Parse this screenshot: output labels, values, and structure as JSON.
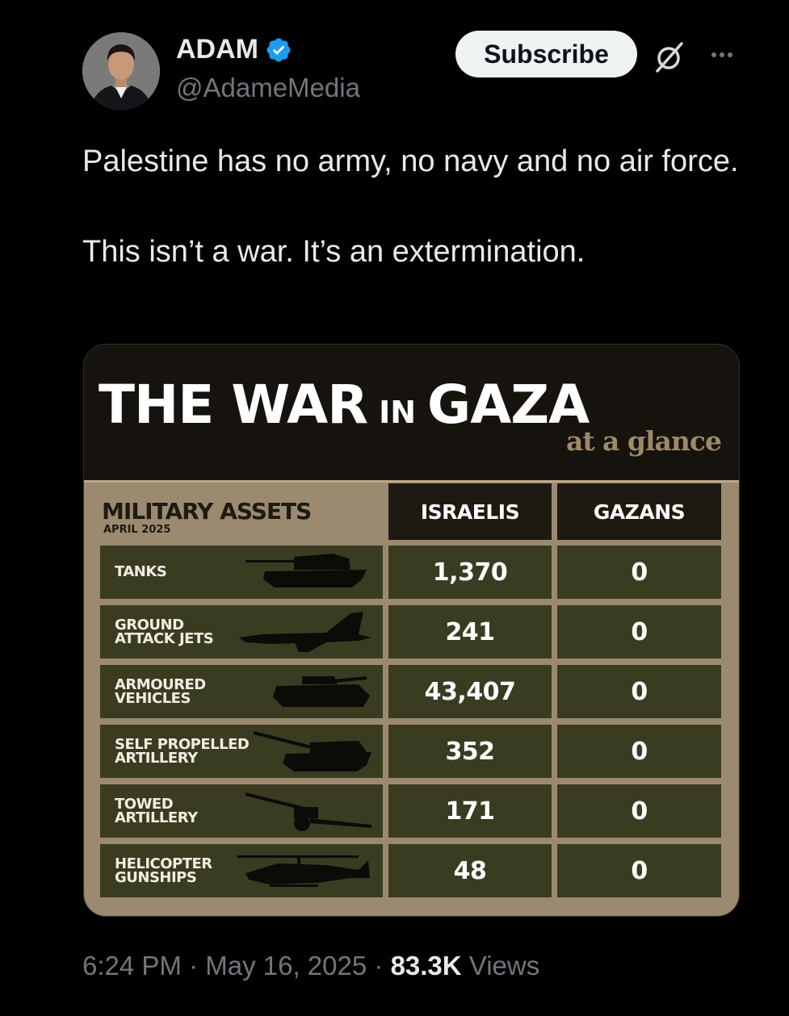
{
  "author": {
    "name": "ADAM",
    "handle": "@AdameMedia",
    "verified": true,
    "badge_color": "#1d9bf0"
  },
  "actions": {
    "subscribe_label": "Subscribe",
    "grok_icon": "grok-icon",
    "more_icon": "more-icon"
  },
  "tweet": {
    "paragraphs": [
      "Palestine has no army, no navy and no air force.",
      "This isn’t a war. It’s an extermination."
    ]
  },
  "infographic": {
    "title_part1": "THE WAR",
    "title_in": "IN",
    "title_part2": "GAZA",
    "subtitle": "at a glance",
    "section_title": "MILITARY ASSETS",
    "section_date": "APRIL 2025",
    "columns": [
      "ISRAELIS",
      "GAZANS"
    ],
    "rows": [
      {
        "label": "TANKS",
        "icon": "tank-icon",
        "israelis": "1,370",
        "gazans": "0"
      },
      {
        "label": "GROUND\nATTACK JETS",
        "icon": "jet-icon",
        "israelis": "241",
        "gazans": "0"
      },
      {
        "label": "ARMOURED\nVEHICLES",
        "icon": "armoured-vehicle-icon",
        "israelis": "43,407",
        "gazans": "0"
      },
      {
        "label": "SELF PROPELLED\nARTILLERY",
        "icon": "self-propelled-artillery-icon",
        "israelis": "352",
        "gazans": "0"
      },
      {
        "label": "TOWED\nARTILLERY",
        "icon": "towed-artillery-icon",
        "israelis": "171",
        "gazans": "0"
      },
      {
        "label": "HELICOPTER\nGUNSHIPS",
        "icon": "helicopter-icon",
        "israelis": "48",
        "gazans": "0"
      }
    ]
  },
  "meta": {
    "time": "6:24 PM",
    "separator": "·",
    "date": "May 16, 2025",
    "views_count": "83.3K",
    "views_label": "Views"
  }
}
